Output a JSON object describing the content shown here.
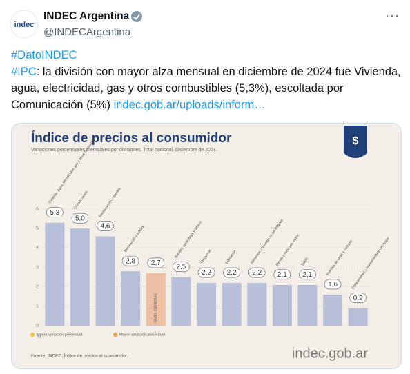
{
  "tweet": {
    "avatar_text": "indec",
    "name": "INDEC Argentina",
    "handle": "@INDECArgentina",
    "menu": "···",
    "hashtag_1": "#DatoINDEC",
    "hashtag_2": "#IPC",
    "body": ": la división con mayor alza mensual en diciembre de 2024 fue Vivienda, agua, electricidad, gas y otros combustibles (5,3%), escoltada por Comunicación (5%)",
    "link": "indec.gob.ar/uploads/inform…"
  },
  "chart_data": {
    "type": "bar",
    "title": "Índice de precios al consumidor",
    "subtitle": "Variaciones porcentuales mensuales por divisiones. Total nacional. Diciembre de 2024.",
    "y_unit": "%",
    "categories": [
      "Vivienda, agua, electricidad, gas y otros combustibles",
      "Comunicación",
      "Restaurantes y hoteles",
      "Recreación y cultura",
      "NIVEL GENERAL",
      "Bebidas alcohólicas y tabaco",
      "Transporte",
      "Educación",
      "Alimentos y bebidas no alcohólicas",
      "Bienes y servicios varios",
      "Salud",
      "Prendas de vestir y calzado",
      "Equipamiento y mantenimiento del hogar"
    ],
    "values": [
      5.3,
      5.0,
      4.6,
      2.8,
      2.7,
      2.5,
      2.2,
      2.2,
      2.2,
      2.1,
      2.1,
      1.6,
      0.9
    ],
    "value_labels": [
      "5,3",
      "5,0",
      "4,6",
      "2,8",
      "2,7",
      "2,5",
      "2,2",
      "2,2",
      "2,2",
      "2,1",
      "2,1",
      "1,6",
      "0,9"
    ],
    "colors": [
      "#b7c0d8",
      "#b7c0d8",
      "#b7c0d8",
      "#b7c0d8",
      "#edbfa4",
      "#b7c0d8",
      "#b7c0d8",
      "#b7c0d8",
      "#b7c0d8",
      "#b7c0d8",
      "#b7c0d8",
      "#b7c0d8",
      "#b7c0d8"
    ],
    "ylim": [
      0,
      6
    ],
    "yticks": [
      0,
      1,
      2,
      3,
      4,
      5,
      6
    ],
    "grid": true,
    "legend": [
      {
        "name": "Menor variación porcentual",
        "color": "#f2c230"
      },
      {
        "name": "Mayor variación porcentual",
        "color": "#f0a04a"
      }
    ],
    "source": "Fuente: INDEC, Índice de precios al consumidor.",
    "logo": "indec.gob.ar"
  }
}
